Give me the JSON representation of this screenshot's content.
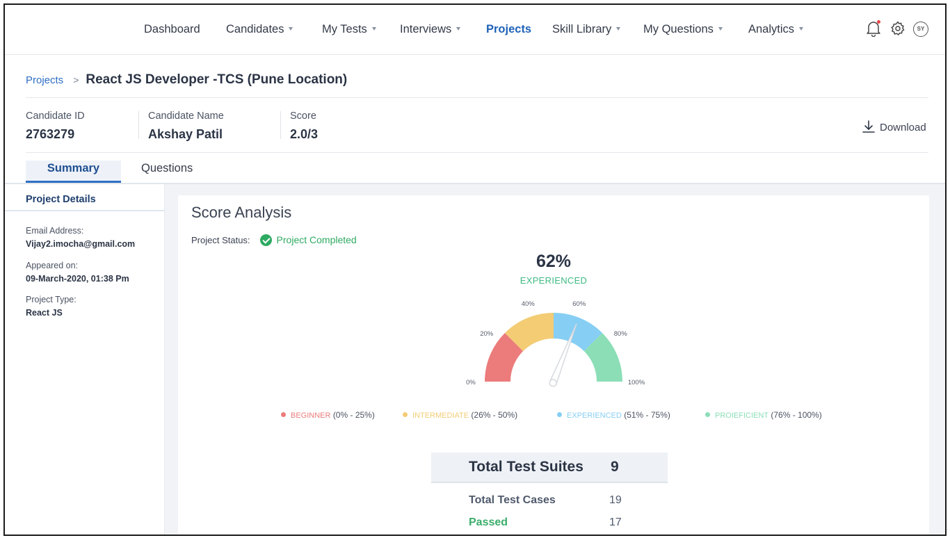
{
  "nav": {
    "items": [
      {
        "label": "Dashboard",
        "dropdown": false
      },
      {
        "label": "Candidates",
        "dropdown": true
      },
      {
        "label": "My Tests",
        "dropdown": true
      },
      {
        "label": "Interviews",
        "dropdown": true
      },
      {
        "label": "Projects",
        "dropdown": false,
        "active": true
      },
      {
        "label": "Skill Library",
        "dropdown": true
      },
      {
        "label": "My Questions",
        "dropdown": true
      },
      {
        "label": "Analytics",
        "dropdown": true
      }
    ],
    "icons": [
      "bell-icon",
      "gear-icon"
    ],
    "avatar_initials": "SY"
  },
  "breadcrumb": {
    "parent": "Projects",
    "separator": ">",
    "title": "React JS  Developer -TCS (Pune Location)"
  },
  "candidate": {
    "id_label": "Candidate ID",
    "id_value": "2763279",
    "name_label": "Candidate Name",
    "name_value": "Akshay Patil",
    "score_label": "Score",
    "score_value": "2.0/3",
    "download_label": "Download"
  },
  "tabs": [
    "Summary",
    "Questions"
  ],
  "sidebar": {
    "title": "Project Details",
    "fields": [
      {
        "label": "Email Address:",
        "value": "Vijay2.imocha@gmail.com"
      },
      {
        "label": "Appeared on:",
        "value": "09-March-2020, 01:38 Pm"
      },
      {
        "label": "Project Type:",
        "value": "React JS"
      }
    ]
  },
  "analysis": {
    "title": "Score Analysis",
    "status_label": "Project Status:",
    "status_value": "Project Completed",
    "percent_text": "62%",
    "level": "EXPERIENCED",
    "colors": {
      "beginner": "#ec7b7b",
      "intermediate": "#f3cc74",
      "experienced": "#86cef4",
      "proficient": "#8bdeb6",
      "success": "#2eaa62",
      "accent": "#1f62b8"
    }
  },
  "chart_data": {
    "type": "gauge",
    "value": 62,
    "range": [
      0,
      100
    ],
    "tick_labels": [
      "0%",
      "20%",
      "40%",
      "60%",
      "80%",
      "100%"
    ],
    "bands": [
      {
        "name": "BEGINNER",
        "range_text": "(0% - 25%)",
        "from": 0,
        "to": 25,
        "color": "#ec7b7b"
      },
      {
        "name": "INTERMEDIATE",
        "range_text": "(26% - 50%)",
        "from": 25,
        "to": 50,
        "color": "#f3cc74"
      },
      {
        "name": "EXPERIENCED",
        "range_text": "(51% - 75%)",
        "from": 50,
        "to": 75,
        "color": "#86cef4"
      },
      {
        "name": "PROIEFICIENT",
        "range_text": "(76% - 100%)",
        "from": 75,
        "to": 100,
        "color": "#8bdeb6"
      }
    ]
  },
  "tests": {
    "suites_label": "Total Test Suites",
    "suites_value": "9",
    "cases_label": "Total Test Cases",
    "cases_value": "19",
    "passed_label": "Passed",
    "passed_value": "17"
  }
}
